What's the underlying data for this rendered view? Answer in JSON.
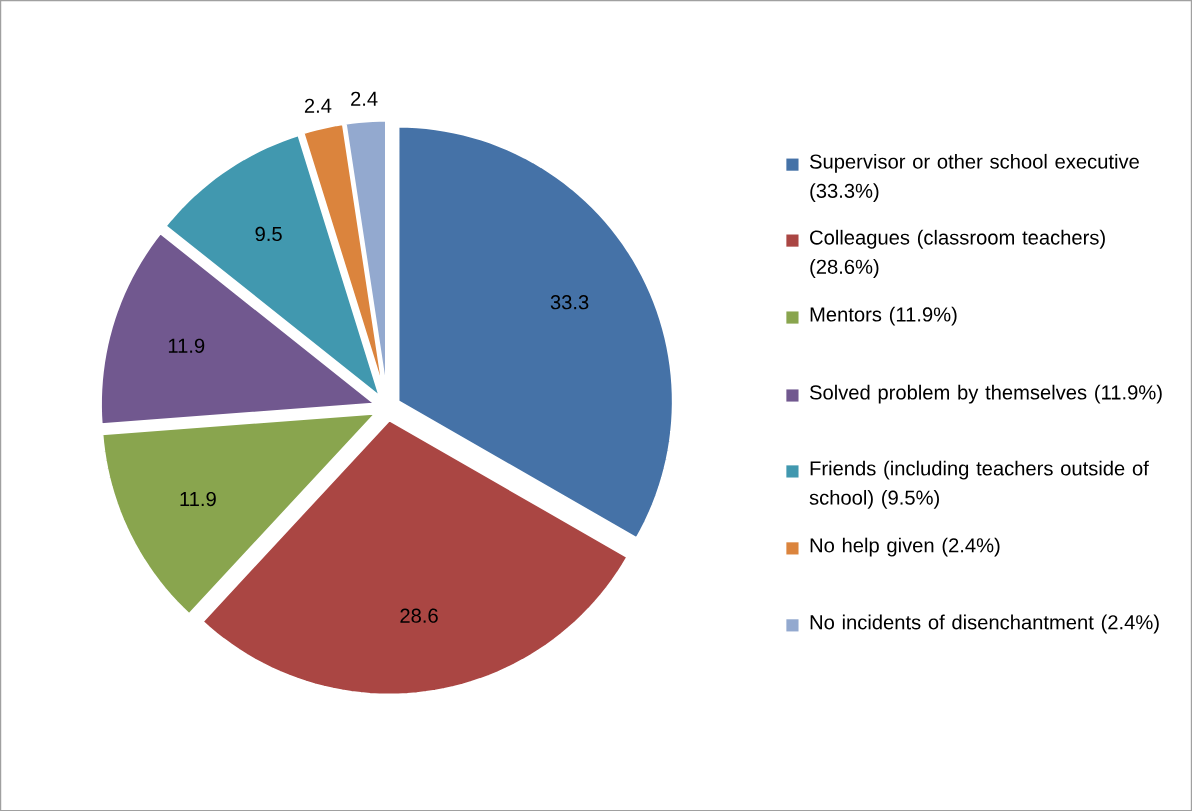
{
  "chart_data": {
    "type": "pie",
    "categories": [
      "Supervisor or other school executive (33.3%)",
      "Colleagues (classroom teachers) (28.6%)",
      "Mentors (11.9%)",
      "Solved problem by themselves (11.9%)",
      "Friends (including teachers outside of school) (9.5%)",
      "No help given (2.4%)",
      "No incidents of disenchantment (2.4%)"
    ],
    "values": [
      33.3,
      28.6,
      11.9,
      11.9,
      9.5,
      2.4,
      2.4
    ],
    "colors": [
      "#4572a7",
      "#aa4643",
      "#89a54e",
      "#71588f",
      "#4198af",
      "#db843d",
      "#93a9cf"
    ],
    "data_labels": true,
    "legend": "right"
  }
}
